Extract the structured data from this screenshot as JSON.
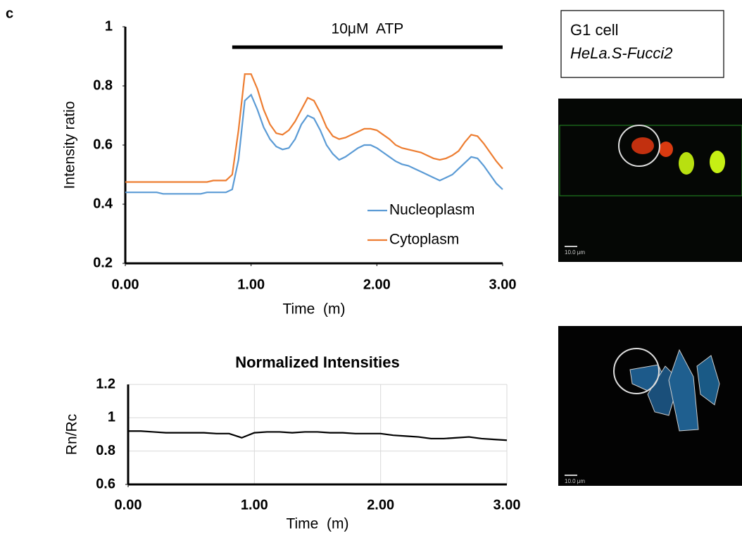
{
  "panel_label": "c",
  "chart_data": [
    {
      "type": "line",
      "x_label": "Time  (m)",
      "y_label": "Intensity ratio",
      "annotation": {
        "text": "10μM  ATP",
        "x_range": [
          0.85,
          3.0
        ]
      },
      "legend": "lower right",
      "grid": false,
      "xlim": [
        0,
        3
      ],
      "ylim": [
        0.2,
        1
      ],
      "xticks": [
        {
          "value": 0,
          "label": "0.00"
        },
        {
          "value": 1,
          "label": "1.00"
        },
        {
          "value": 2,
          "label": "2.00"
        },
        {
          "value": 3,
          "label": "3.00"
        }
      ],
      "yticks": [
        0.2,
        0.4,
        0.6,
        0.8,
        1
      ],
      "x": [
        0,
        0.05,
        0.1,
        0.15,
        0.2,
        0.25,
        0.3,
        0.35,
        0.4,
        0.45,
        0.5,
        0.55,
        0.6,
        0.65,
        0.7,
        0.75,
        0.8,
        0.85,
        0.9,
        0.95,
        1,
        1.05,
        1.1,
        1.15,
        1.2,
        1.25,
        1.3,
        1.35,
        1.4,
        1.45,
        1.5,
        1.55,
        1.6,
        1.65,
        1.7,
        1.75,
        1.8,
        1.85,
        1.9,
        1.95,
        2,
        2.05,
        2.1,
        2.15,
        2.2,
        2.25,
        2.3,
        2.35,
        2.4,
        2.45,
        2.5,
        2.55,
        2.6,
        2.65,
        2.7,
        2.75,
        2.8,
        2.85,
        2.9,
        2.95,
        3
      ],
      "series": [
        {
          "name": "Nucleoplasm",
          "color": "#5b9bd5",
          "values": [
            0.44,
            0.44,
            0.44,
            0.44,
            0.44,
            0.44,
            0.435,
            0.435,
            0.435,
            0.435,
            0.435,
            0.435,
            0.435,
            0.44,
            0.44,
            0.44,
            0.44,
            0.45,
            0.55,
            0.75,
            0.77,
            0.72,
            0.66,
            0.62,
            0.595,
            0.585,
            0.59,
            0.62,
            0.67,
            0.7,
            0.69,
            0.65,
            0.6,
            0.57,
            0.55,
            0.56,
            0.575,
            0.59,
            0.6,
            0.6,
            0.59,
            0.575,
            0.56,
            0.545,
            0.535,
            0.53,
            0.52,
            0.51,
            0.5,
            0.49,
            0.48,
            0.49,
            0.5,
            0.52,
            0.54,
            0.56,
            0.555,
            0.53,
            0.5,
            0.47,
            0.45
          ]
        },
        {
          "name": "Cytoplasm",
          "color": "#ed7d31",
          "values": [
            0.475,
            0.475,
            0.475,
            0.475,
            0.475,
            0.475,
            0.475,
            0.475,
            0.475,
            0.475,
            0.475,
            0.475,
            0.475,
            0.475,
            0.48,
            0.48,
            0.48,
            0.5,
            0.65,
            0.84,
            0.84,
            0.79,
            0.72,
            0.67,
            0.64,
            0.635,
            0.65,
            0.68,
            0.72,
            0.76,
            0.75,
            0.71,
            0.66,
            0.63,
            0.62,
            0.625,
            0.635,
            0.645,
            0.655,
            0.655,
            0.65,
            0.635,
            0.62,
            0.6,
            0.59,
            0.585,
            0.58,
            0.575,
            0.565,
            0.555,
            0.55,
            0.555,
            0.565,
            0.58,
            0.61,
            0.635,
            0.63,
            0.605,
            0.575,
            0.545,
            0.52
          ]
        }
      ]
    },
    {
      "type": "line",
      "title": "Normalized Intensities",
      "x_label": "Time  (m)",
      "y_label": "Rn/Rc",
      "grid": true,
      "xlim": [
        0,
        3
      ],
      "ylim": [
        0.6,
        1.2
      ],
      "xticks": [
        {
          "value": 0,
          "label": "0.00"
        },
        {
          "value": 1,
          "label": "1.00"
        },
        {
          "value": 2,
          "label": "2.00"
        },
        {
          "value": 3,
          "label": "3.00"
        }
      ],
      "yticks": [
        0.6,
        0.8,
        1,
        1.2
      ],
      "x": [
        0,
        0.1,
        0.2,
        0.3,
        0.4,
        0.5,
        0.6,
        0.7,
        0.8,
        0.9,
        1,
        1.1,
        1.2,
        1.3,
        1.4,
        1.5,
        1.6,
        1.7,
        1.8,
        1.9,
        2,
        2.1,
        2.2,
        2.3,
        2.4,
        2.5,
        2.6,
        2.7,
        2.8,
        2.9,
        3
      ],
      "series": [
        {
          "name": "Rn/Rc",
          "color": "#000000",
          "values": [
            0.92,
            0.92,
            0.915,
            0.91,
            0.91,
            0.91,
            0.91,
            0.905,
            0.905,
            0.88,
            0.91,
            0.915,
            0.915,
            0.91,
            0.915,
            0.915,
            0.91,
            0.91,
            0.905,
            0.905,
            0.905,
            0.895,
            0.89,
            0.885,
            0.875,
            0.875,
            0.88,
            0.885,
            0.875,
            0.87,
            0.865
          ]
        }
      ]
    }
  ],
  "images": {
    "caption": [
      "G1 cell",
      "HeLa.S-Fucci2"
    ],
    "scale_bar_labels": [
      "10.0 μm",
      "10.0 μm"
    ]
  }
}
